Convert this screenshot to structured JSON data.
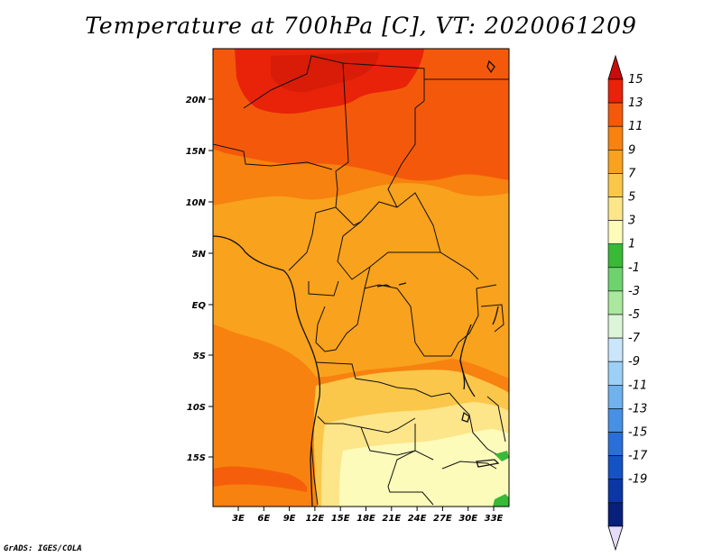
{
  "title": "Temperature at 700hPa [C], VT: 2020061209",
  "credit": "GrADS: IGES/COLA",
  "map": {
    "lat_ticks": [
      "20N",
      "15N",
      "10N",
      "5N",
      "EQ",
      "5S",
      "10S",
      "15S"
    ],
    "lon_ticks": [
      "3E",
      "6E",
      "9E",
      "12E",
      "15E",
      "18E",
      "21E",
      "24E",
      "27E",
      "30E",
      "33E"
    ]
  },
  "colorbar": {
    "labels": [
      "15",
      "13",
      "11",
      "9",
      "7",
      "5",
      "3",
      "1",
      "-1",
      "-3",
      "-5",
      "-7",
      "-9",
      "-11",
      "-13",
      "-15",
      "-17",
      "-19"
    ],
    "colors": [
      "#e8230a",
      "#f4590b",
      "#f7820f",
      "#f9a21d",
      "#fbc74a",
      "#fde58a",
      "#fdfbba",
      "#38b938",
      "#6ed36e",
      "#a9e89e",
      "#dcf5d8",
      "#c9e6fb",
      "#9dd0f6",
      "#6fb2ee",
      "#4790e3",
      "#2a6fd7",
      "#1552c3",
      "#0b36a4",
      "#09207a"
    ],
    "top_arrow_color": "#c80c0c",
    "bottom_arrow_color": "#e6dcf7"
  }
}
